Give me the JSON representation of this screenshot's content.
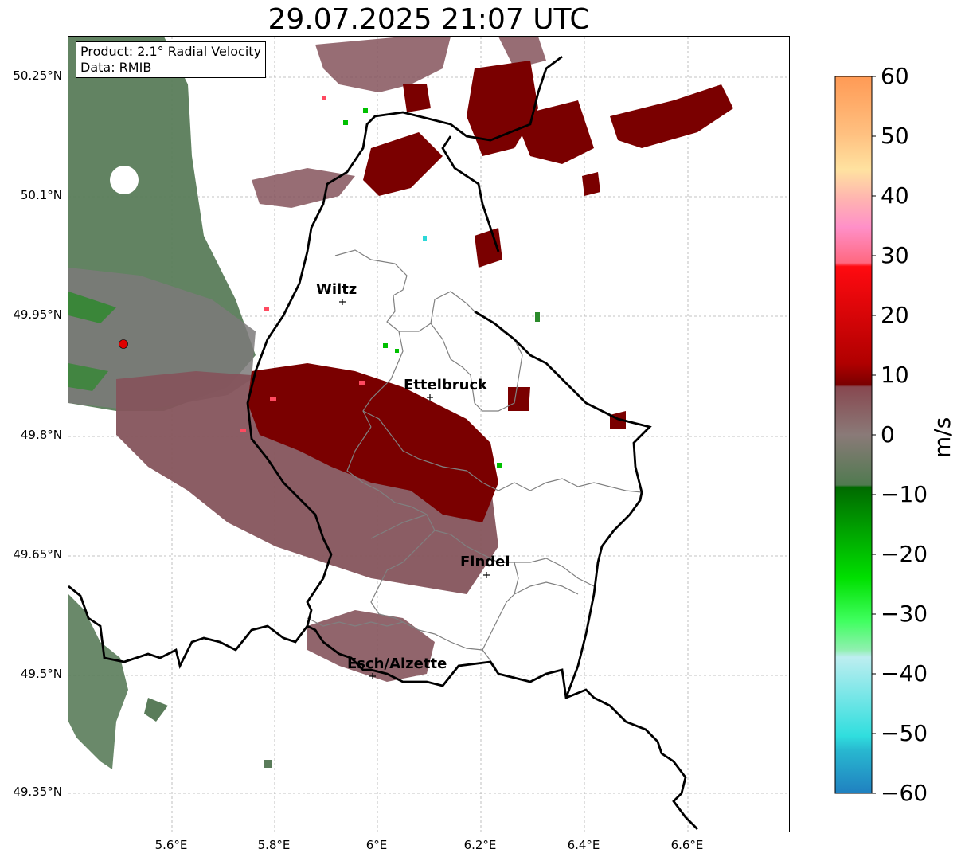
{
  "title": "29.07.2025 21:07 UTC",
  "info": {
    "product": "Product: 2.1° Radial Velocity",
    "data": "Data: RMIB"
  },
  "map": {
    "lat_ticks": [
      "50.25°N",
      "50.1°N",
      "49.95°N",
      "49.8°N",
      "49.65°N",
      "49.5°N",
      "49.35°N"
    ],
    "lon_ticks": [
      "5.6°E",
      "5.8°E",
      "6°E",
      "6.2°E",
      "6.4°E",
      "6.6°E"
    ],
    "cities": [
      {
        "name": "Wiltz"
      },
      {
        "name": "Ettelbruck"
      },
      {
        "name": "Findel"
      },
      {
        "name": "Esch/Alzette"
      }
    ],
    "radar_marker_color": "#e00000"
  },
  "colorbar": {
    "unit": "m/s",
    "ticks": [
      "60",
      "50",
      "40",
      "30",
      "20",
      "10",
      "0",
      "−10",
      "−20",
      "−30",
      "−40",
      "−50",
      "−60"
    ],
    "range": [
      -60,
      60
    ],
    "colors": {
      "strong_away": "#f08a4b",
      "away": "#ff0000",
      "moderate_away": "#7a0000",
      "near_zero_pos": "#8a6470",
      "near_zero_neg": "#5a7c5a",
      "toward": "#007a00",
      "strong_toward": "#00e400",
      "very_strong_toward": "#2cd8d8"
    }
  }
}
